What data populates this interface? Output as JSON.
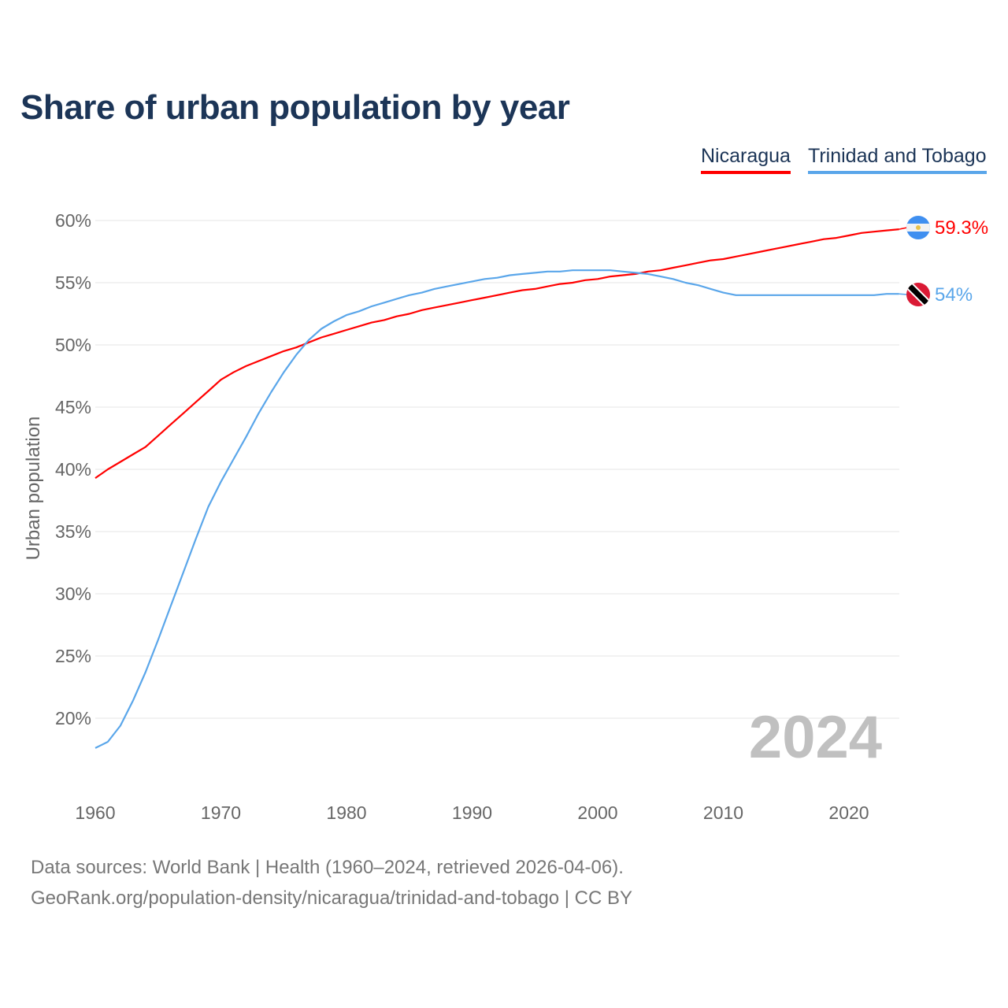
{
  "title": "Share of urban population by year",
  "legend": [
    {
      "label": "Nicaragua",
      "color": "#ff0000"
    },
    {
      "label": "Trinidad and Tobago",
      "color": "#5aa6ea"
    }
  ],
  "year_watermark": "2024",
  "footer": {
    "line1": "Data sources: World Bank | Health (1960–2024, retrieved 2026-04-06).",
    "line2": "GeoRank.org/population-density/nicaragua/trinidad-and-tobago | CC BY"
  },
  "chart_data": {
    "type": "line",
    "title": "Share of urban population by year",
    "xlabel": "",
    "ylabel": "Urban population",
    "xlim": [
      1960,
      2024
    ],
    "ylim": [
      17,
      61
    ],
    "x_ticks": [
      1960,
      1970,
      1980,
      1990,
      2000,
      2010,
      2020
    ],
    "x_tick_labels": [
      "1960",
      "1970",
      "1980",
      "1990",
      "2000",
      "2010",
      "2020"
    ],
    "y_ticks": [
      20,
      25,
      30,
      35,
      40,
      45,
      50,
      55,
      60
    ],
    "y_tick_labels": [
      "20%",
      "25%",
      "30%",
      "35%",
      "40%",
      "45%",
      "50%",
      "55%",
      "60%"
    ],
    "grid": true,
    "legend_position": "top-right",
    "x": [
      1960,
      1961,
      1962,
      1963,
      1964,
      1965,
      1966,
      1967,
      1968,
      1969,
      1970,
      1971,
      1972,
      1973,
      1974,
      1975,
      1976,
      1977,
      1978,
      1979,
      1980,
      1981,
      1982,
      1983,
      1984,
      1985,
      1986,
      1987,
      1988,
      1989,
      1990,
      1991,
      1992,
      1993,
      1994,
      1995,
      1996,
      1997,
      1998,
      1999,
      2000,
      2001,
      2002,
      2003,
      2004,
      2005,
      2006,
      2007,
      2008,
      2009,
      2010,
      2011,
      2012,
      2013,
      2014,
      2015,
      2016,
      2017,
      2018,
      2019,
      2020,
      2021,
      2022,
      2023,
      2024
    ],
    "series": [
      {
        "name": "Nicaragua",
        "end_label": "59.3%",
        "color": "#ff0000",
        "values": [
          39.3,
          40.0,
          40.6,
          41.2,
          41.8,
          42.7,
          43.6,
          44.5,
          45.4,
          46.3,
          47.2,
          47.8,
          48.3,
          48.7,
          49.1,
          49.5,
          49.8,
          50.2,
          50.6,
          50.9,
          51.2,
          51.5,
          51.8,
          52.0,
          52.3,
          52.5,
          52.8,
          53.0,
          53.2,
          53.4,
          53.6,
          53.8,
          54.0,
          54.2,
          54.4,
          54.5,
          54.7,
          54.9,
          55.0,
          55.2,
          55.3,
          55.5,
          55.6,
          55.7,
          55.9,
          56.0,
          56.2,
          56.4,
          56.6,
          56.8,
          56.9,
          57.1,
          57.3,
          57.5,
          57.7,
          57.9,
          58.1,
          58.3,
          58.5,
          58.6,
          58.8,
          59.0,
          59.1,
          59.2,
          59.3
        ]
      },
      {
        "name": "Trinidad and Tobago",
        "end_label": "54%",
        "color": "#5aa6ea",
        "values": [
          17.6,
          18.1,
          19.4,
          21.4,
          23.7,
          26.3,
          29.0,
          31.7,
          34.4,
          37.0,
          39.0,
          40.8,
          42.6,
          44.5,
          46.2,
          47.8,
          49.2,
          50.4,
          51.3,
          51.9,
          52.4,
          52.7,
          53.1,
          53.4,
          53.7,
          54.0,
          54.2,
          54.5,
          54.7,
          54.9,
          55.1,
          55.3,
          55.4,
          55.6,
          55.7,
          55.8,
          55.9,
          55.9,
          56.0,
          56.0,
          56.0,
          56.0,
          55.9,
          55.8,
          55.7,
          55.5,
          55.3,
          55.0,
          54.8,
          54.5,
          54.2,
          54.0,
          54.0,
          54.0,
          54.0,
          54.0,
          54.0,
          54.0,
          54.0,
          54.0,
          54.0,
          54.0,
          54.0,
          54.1,
          54.1
        ]
      }
    ]
  }
}
